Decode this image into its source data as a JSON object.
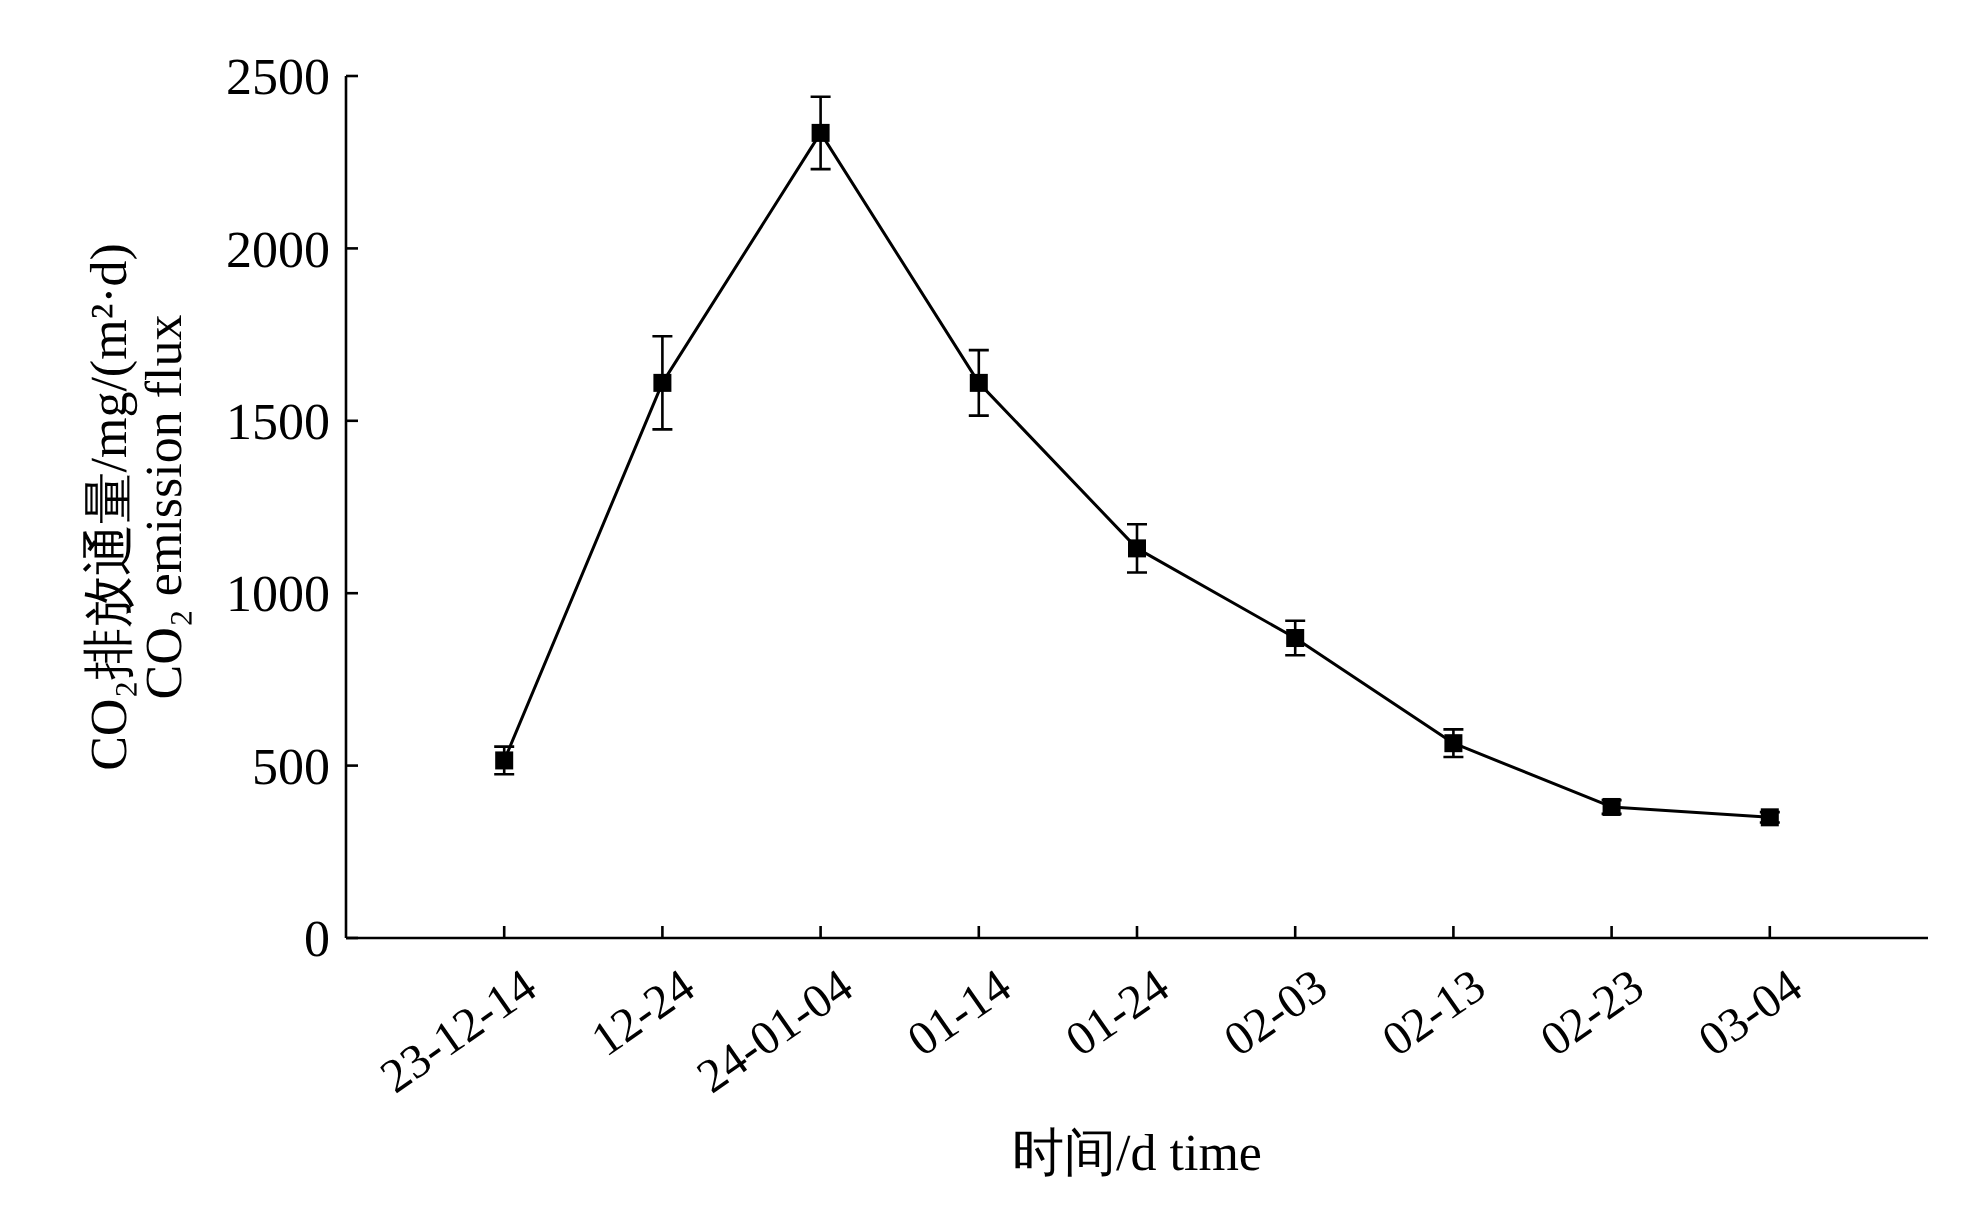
{
  "chart_data": {
    "type": "line",
    "xlabel": "时间/d time",
    "ylabel": "CO₂排放通量/mg/(m²·d)\nCO₂ emission flux",
    "categories": [
      "23-12-14",
      "12-24",
      "24-01-04",
      "01-14",
      "01-24",
      "02-03",
      "02-13",
      "02-23",
      "03-04"
    ],
    "series": [
      {
        "color": "#000000",
        "values": [
          515,
          1610,
          2335,
          1610,
          1130,
          870,
          565,
          380,
          350
        ],
        "errors": [
          40,
          135,
          105,
          95,
          70,
          50,
          40,
          20,
          15
        ]
      }
    ],
    "ylim": [
      0,
      2500
    ],
    "yticks": [
      0,
      500,
      1000,
      1500,
      2000,
      2500
    ],
    "marker": "square",
    "line_style": "solid",
    "grid": false
  }
}
